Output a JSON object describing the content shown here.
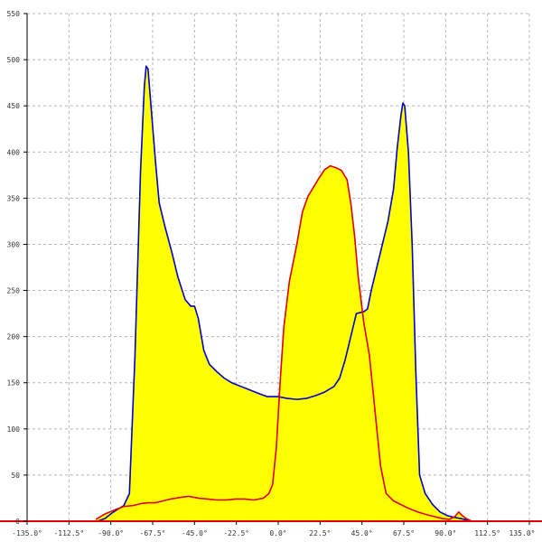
{
  "chart_data": {
    "type": "area",
    "title": "",
    "xlabel": "",
    "ylabel": "",
    "xlim": [
      -135,
      135
    ],
    "ylim": [
      0,
      550
    ],
    "grid": true,
    "legend": "none",
    "x_ticks": [
      -135.0,
      -112.5,
      -90.0,
      -67.5,
      -45.0,
      -22.5,
      0.0,
      22.5,
      45.0,
      67.5,
      90.0,
      112.5,
      135.0
    ],
    "x_tick_labels": [
      "-135.0°",
      "-112.5°",
      "-90.0°",
      "-67.5°",
      "-45.0°",
      "-22.5°",
      "0.0°",
      "22.5°",
      "45.0°",
      "67.5°",
      "90.0°",
      "112.5°",
      "135.0°"
    ],
    "y_ticks": [
      0,
      50,
      100,
      150,
      200,
      250,
      300,
      350,
      400,
      450,
      500,
      550
    ],
    "y_tick_labels": [
      "0",
      "50",
      "100",
      "150",
      "200",
      "250",
      "300",
      "350",
      "400",
      "450",
      "500",
      "550"
    ],
    "fill_color": "#ffff00",
    "series": [
      {
        "color": "#0000cc",
        "points": [
          [
            -97,
            0
          ],
          [
            -93,
            3
          ],
          [
            -90,
            8
          ],
          [
            -87,
            12
          ],
          [
            -83,
            17
          ],
          [
            -80,
            30
          ],
          [
            -77,
            180
          ],
          [
            -74,
            380
          ],
          [
            -72,
            470
          ],
          [
            -71,
            493
          ],
          [
            -70,
            490
          ],
          [
            -68,
            440
          ],
          [
            -66,
            390
          ],
          [
            -64,
            345
          ],
          [
            -61,
            320
          ],
          [
            -57,
            290
          ],
          [
            -54,
            265
          ],
          [
            -50,
            240
          ],
          [
            -47,
            233
          ],
          [
            -45,
            233
          ],
          [
            -43,
            220
          ],
          [
            -40,
            185
          ],
          [
            -37,
            170
          ],
          [
            -33,
            162
          ],
          [
            -29,
            155
          ],
          [
            -25,
            150
          ],
          [
            -20,
            146
          ],
          [
            -15,
            142
          ],
          [
            -10,
            138
          ],
          [
            -6,
            135
          ],
          [
            0,
            135
          ],
          [
            5,
            133
          ],
          [
            10,
            132
          ],
          [
            15,
            133
          ],
          [
            20,
            136
          ],
          [
            25,
            140
          ],
          [
            30,
            146
          ],
          [
            33,
            155
          ],
          [
            36,
            175
          ],
          [
            39,
            200
          ],
          [
            42,
            225
          ],
          [
            46,
            227
          ],
          [
            48,
            230
          ],
          [
            50,
            250
          ],
          [
            53,
            275
          ],
          [
            56,
            300
          ],
          [
            59,
            325
          ],
          [
            62,
            360
          ],
          [
            64,
            405
          ],
          [
            66,
            440
          ],
          [
            67,
            453
          ],
          [
            68,
            450
          ],
          [
            70,
            400
          ],
          [
            72,
            300
          ],
          [
            74,
            160
          ],
          [
            76,
            50
          ],
          [
            79,
            30
          ],
          [
            83,
            18
          ],
          [
            87,
            10
          ],
          [
            91,
            6
          ],
          [
            95,
            4
          ],
          [
            98,
            3
          ],
          [
            102,
            1
          ]
        ]
      },
      {
        "color": "#dd0000",
        "points": [
          [
            -98,
            2
          ],
          [
            -93,
            8
          ],
          [
            -87,
            13
          ],
          [
            -83,
            16
          ],
          [
            -78,
            17
          ],
          [
            -74,
            19
          ],
          [
            -70,
            20
          ],
          [
            -66,
            20
          ],
          [
            -62,
            22
          ],
          [
            -58,
            24
          ],
          [
            -52,
            26
          ],
          [
            -48,
            27
          ],
          [
            -43,
            25
          ],
          [
            -38,
            24
          ],
          [
            -33,
            23
          ],
          [
            -28,
            23
          ],
          [
            -23,
            24
          ],
          [
            -18,
            24
          ],
          [
            -13,
            23
          ],
          [
            -8,
            25
          ],
          [
            -5,
            30
          ],
          [
            -3,
            40
          ],
          [
            -1,
            80
          ],
          [
            1,
            150
          ],
          [
            3,
            210
          ],
          [
            6,
            260
          ],
          [
            10,
            300
          ],
          [
            13,
            335
          ],
          [
            16,
            352
          ],
          [
            19,
            362
          ],
          [
            22,
            372
          ],
          [
            25,
            381
          ],
          [
            28,
            385
          ],
          [
            31,
            383
          ],
          [
            34,
            380
          ],
          [
            37,
            370
          ],
          [
            39,
            345
          ],
          [
            41,
            310
          ],
          [
            43,
            265
          ],
          [
            46,
            215
          ],
          [
            49,
            180
          ],
          [
            52,
            120
          ],
          [
            55,
            60
          ],
          [
            58,
            30
          ],
          [
            62,
            22
          ],
          [
            66,
            18
          ],
          [
            70,
            14
          ],
          [
            75,
            10
          ],
          [
            80,
            7
          ],
          [
            84,
            5
          ],
          [
            88,
            3
          ],
          [
            92,
            2
          ],
          [
            95,
            5
          ],
          [
            97,
            10
          ],
          [
            99,
            6
          ],
          [
            101,
            3
          ],
          [
            104,
            0
          ]
        ]
      }
    ]
  }
}
